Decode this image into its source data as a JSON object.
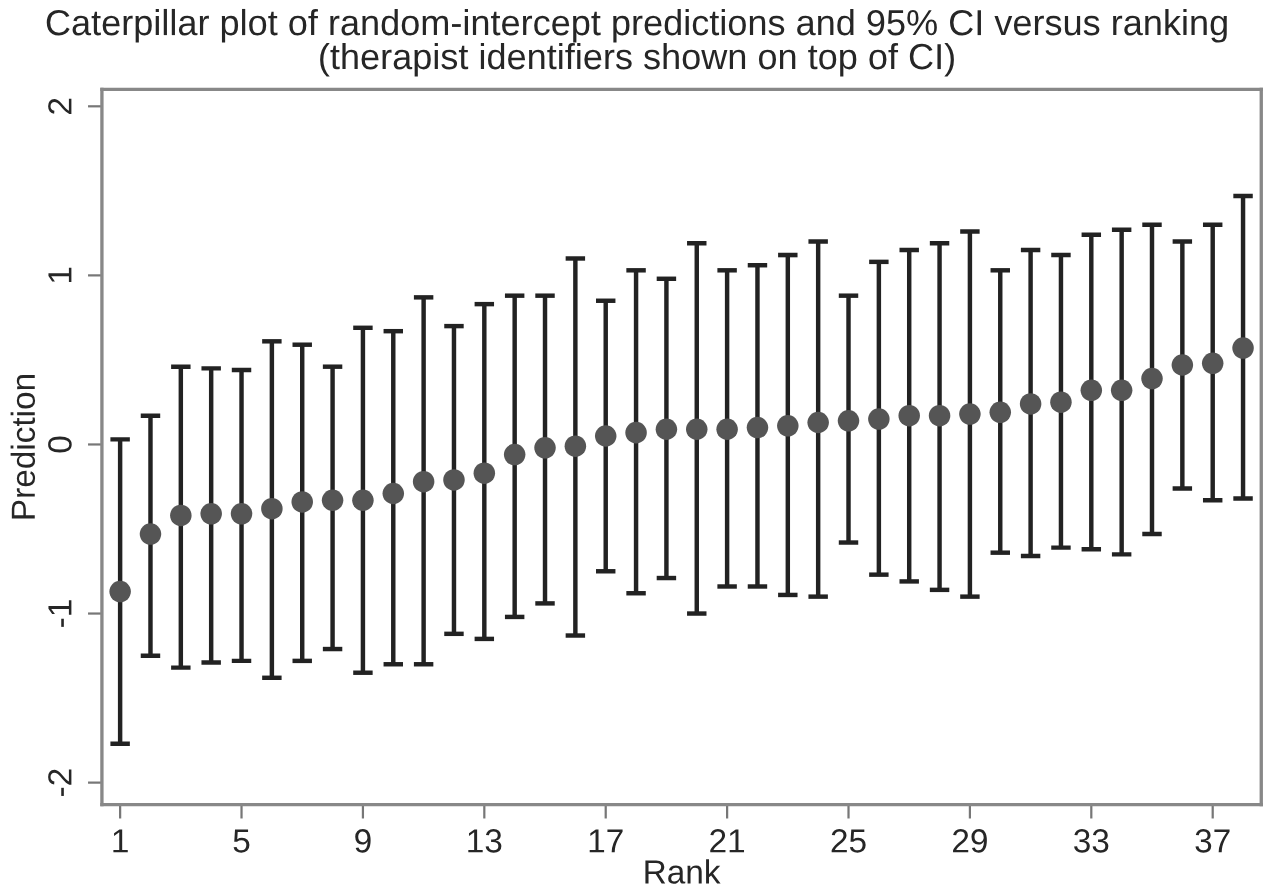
{
  "chart_data": {
    "type": "scatter",
    "title": "Caterpillar plot of random-intercept predictions and 95% CI versus ranking",
    "subtitle": "(therapist identifiers shown on top of CI)",
    "xlabel": "Rank",
    "ylabel": "Prediction",
    "x": [
      1,
      2,
      3,
      4,
      5,
      6,
      7,
      8,
      9,
      10,
      11,
      12,
      13,
      14,
      15,
      16,
      17,
      18,
      19,
      20,
      21,
      22,
      23,
      24,
      25,
      26,
      27,
      28,
      29,
      30,
      31,
      32,
      33,
      34,
      35,
      36,
      37,
      38
    ],
    "values": [
      -0.87,
      -0.53,
      -0.42,
      -0.41,
      -0.41,
      -0.38,
      -0.34,
      -0.33,
      -0.33,
      -0.29,
      -0.22,
      -0.21,
      -0.17,
      -0.06,
      -0.02,
      -0.01,
      0.05,
      0.07,
      0.09,
      0.09,
      0.09,
      0.1,
      0.11,
      0.13,
      0.14,
      0.15,
      0.17,
      0.17,
      0.18,
      0.19,
      0.24,
      0.25,
      0.32,
      0.32,
      0.39,
      0.47,
      0.48,
      0.57
    ],
    "errors": [
      [
        -1.77,
        0.03
      ],
      [
        -1.25,
        0.17
      ],
      [
        -1.32,
        0.46
      ],
      [
        -1.29,
        0.45
      ],
      [
        -1.28,
        0.44
      ],
      [
        -1.38,
        0.61
      ],
      [
        -1.28,
        0.59
      ],
      [
        -1.21,
        0.46
      ],
      [
        -1.35,
        0.69
      ],
      [
        -1.3,
        0.67
      ],
      [
        -1.3,
        0.87
      ],
      [
        -1.12,
        0.7
      ],
      [
        -1.15,
        0.83
      ],
      [
        -1.02,
        0.88
      ],
      [
        -0.94,
        0.88
      ],
      [
        -1.13,
        1.1
      ],
      [
        -0.75,
        0.85
      ],
      [
        -0.88,
        1.03
      ],
      [
        -0.79,
        0.98
      ],
      [
        -1.0,
        1.19
      ],
      [
        -0.84,
        1.03
      ],
      [
        -0.84,
        1.06
      ],
      [
        -0.89,
        1.12
      ],
      [
        -0.9,
        1.2
      ],
      [
        -0.58,
        0.88
      ],
      [
        -0.77,
        1.08
      ],
      [
        -0.81,
        1.15
      ],
      [
        -0.86,
        1.19
      ],
      [
        -0.9,
        1.26
      ],
      [
        -0.64,
        1.03
      ],
      [
        -0.66,
        1.15
      ],
      [
        -0.61,
        1.12
      ],
      [
        -0.62,
        1.24
      ],
      [
        -0.65,
        1.27
      ],
      [
        -0.53,
        1.3
      ],
      [
        -0.26,
        1.2
      ],
      [
        -0.33,
        1.3
      ],
      [
        -0.32,
        1.47
      ]
    ],
    "color": "#555555",
    "marker": "circle",
    "grid": false,
    "legend": false,
    "xlim": [
      0.4,
      38.6
    ],
    "ylim": [
      -2.13,
      2.1
    ],
    "xticks": [
      1,
      5,
      9,
      13,
      17,
      21,
      25,
      29,
      33,
      37
    ],
    "yticks": [
      -2,
      -1,
      0,
      1,
      2
    ]
  }
}
